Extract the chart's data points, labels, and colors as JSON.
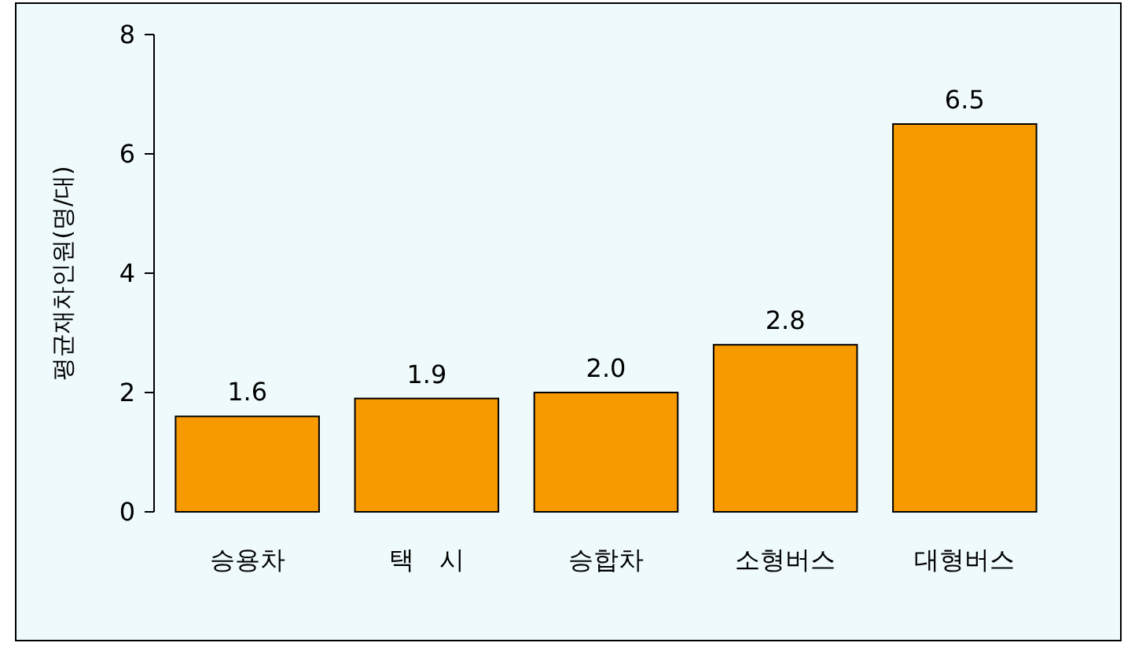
{
  "chart_data": {
    "type": "bar",
    "ylabel": "평균재차인원(명/대)",
    "categories": [
      "승용차",
      "택　시",
      "승합차",
      "소형버스",
      "대형버스"
    ],
    "values": [
      1.6,
      1.9,
      2.0,
      2.8,
      6.5
    ],
    "value_labels": [
      "1.6",
      "1.9",
      "2.0",
      "2.8",
      "6.5"
    ],
    "color": "#f79a00",
    "ylim": [
      0,
      8
    ],
    "yticks": [
      0,
      2,
      4,
      6,
      8
    ],
    "grid": false
  }
}
